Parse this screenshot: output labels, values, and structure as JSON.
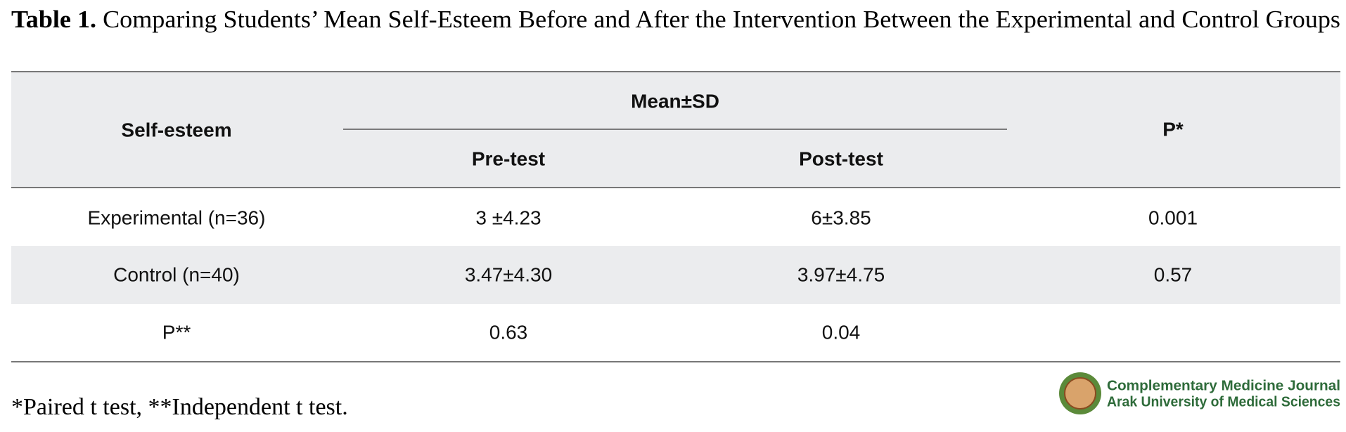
{
  "caption": {
    "label": "Table 1.",
    "text": "Comparing Students’ Mean Self-Esteem Before and After the Intervention Between the Experimental and Control Groups"
  },
  "table": {
    "header": {
      "row_label": "Self-esteem",
      "group": "Mean±SD",
      "p": "P*",
      "sub": [
        "Pre-test",
        "Post-test"
      ]
    },
    "rows": [
      [
        "Experimental (n=36)",
        "3 ±4.23",
        "6±3.85",
        "0.001"
      ],
      [
        "Control (n=40)",
        "3.47±4.30",
        "3.97±4.75",
        "0.57"
      ],
      [
        "P**",
        "0.63",
        "0.04"
      ]
    ]
  },
  "footnote": "*Paired t test, **Independent t test.",
  "logo": {
    "line1": "Complementary Medicine Journal",
    "line2": "Arak University of Medical Sciences"
  }
}
